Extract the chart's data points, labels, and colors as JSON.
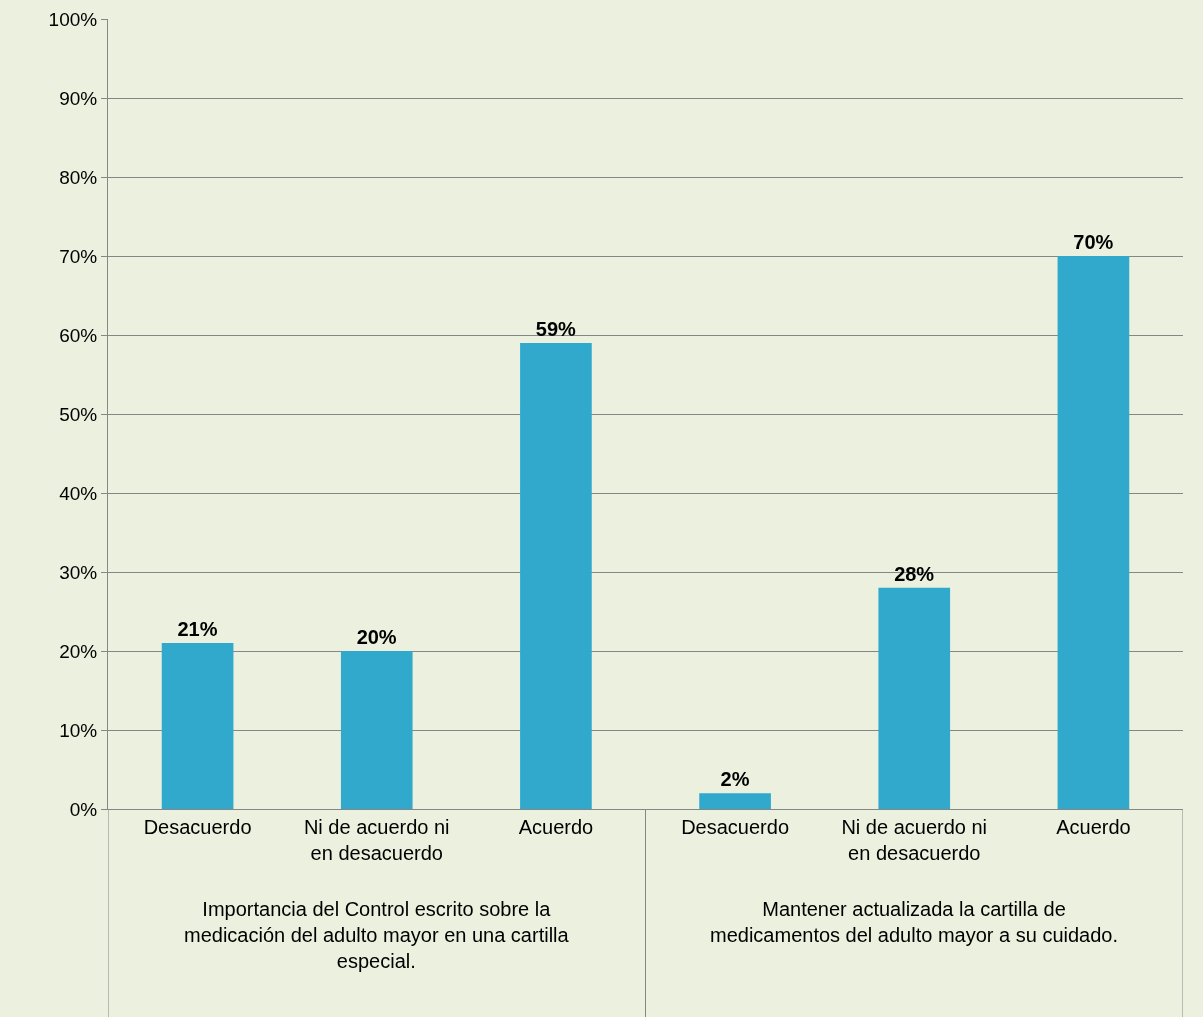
{
  "chart_data": {
    "type": "bar",
    "categories": [
      "Desacuerdo",
      "Ni de acuerdo ni en desacuerdo",
      "Acuerdo",
      "Desacuerdo",
      "Ni de acuerdo ni en desacuerdo",
      "Acuerdo"
    ],
    "values": [
      21,
      20,
      59,
      2,
      28,
      70
    ],
    "color": "#31a9cc",
    "ylim": [
      0,
      100
    ],
    "yticks": [
      {
        "value": 0,
        "label": "0%"
      },
      {
        "value": 10,
        "label": "10%"
      },
      {
        "value": 20,
        "label": "20%"
      },
      {
        "value": 30,
        "label": "30%"
      },
      {
        "value": 40,
        "label": "40%"
      },
      {
        "value": 50,
        "label": "50%"
      },
      {
        "value": 60,
        "label": "60%"
      },
      {
        "value": 70,
        "label": "70%"
      },
      {
        "value": 80,
        "label": "80%"
      },
      {
        "value": 90,
        "label": "90%"
      },
      {
        "value": 100,
        "label": "100%"
      }
    ],
    "value_labels": [
      "21%",
      "20%",
      "59%",
      "2%",
      "28%",
      "70%"
    ],
    "annotations": [
      "Importancia del Control escrito sobre la medicación del adulto mayor en una cartilla especial.",
      "Mantener actualizada la cartilla de medicamentos del adulto mayor a su cuidado."
    ],
    "grid": "y"
  }
}
